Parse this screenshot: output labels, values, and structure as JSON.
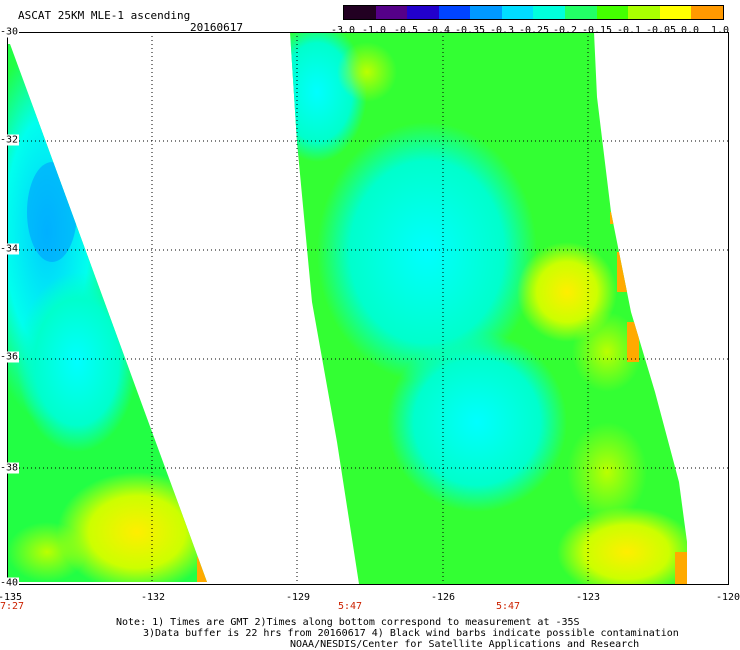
{
  "title": "ASCAT 25KM MLE-1 ascending",
  "date": "20160617",
  "colorbar": {
    "labels": [
      "-3.0",
      "-1.0",
      "-0.5",
      "-0.4",
      "-0.35",
      "-0.3",
      "-0.25",
      "-0.2",
      "-0.15",
      "-0.1",
      "-0.05",
      "0.0",
      "1.0"
    ],
    "colors": [
      "#220022",
      "#550088",
      "#2200cc",
      "#0044ff",
      "#0099ff",
      "#00ddff",
      "#00ffdd",
      "#22ff66",
      "#44ff00",
      "#aaff00",
      "#ffff00",
      "#ff9900",
      "#ff2200"
    ]
  },
  "map": {
    "lat_labels": [
      "-30",
      "-32",
      "-34",
      "-36",
      "-38",
      "-40"
    ],
    "lon_labels": [
      "-135",
      "-132",
      "-129",
      "-126",
      "-123",
      "-120"
    ],
    "lon_range": [
      -135,
      -120
    ],
    "lat_range": [
      -30,
      -40
    ],
    "time_labels": [
      "7:27",
      "5:47",
      "5:47"
    ]
  },
  "notes": {
    "line1": "Note: 1) Times are GMT 2)Times along bottom correspond to measurement at -35S",
    "line2": "3)Data buffer is 22 hrs from 20160617 4) Black wind barbs indicate possible contamination",
    "line3": "NOAA/NESDIS/Center for Satellite Applications and Research"
  }
}
